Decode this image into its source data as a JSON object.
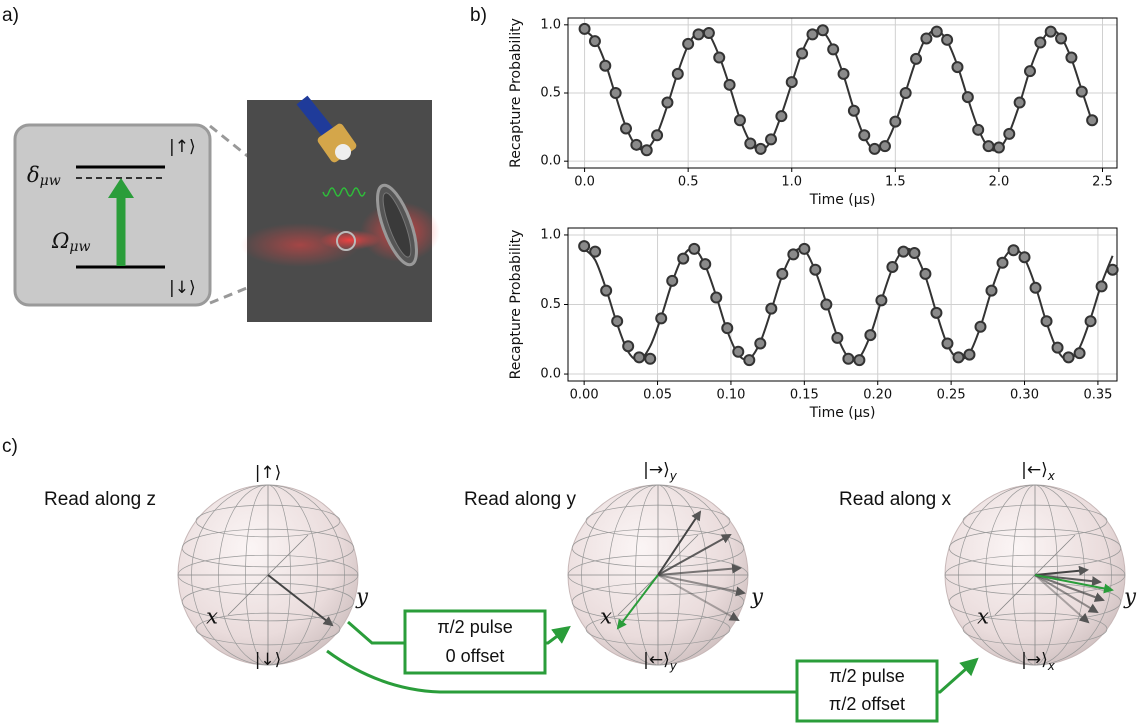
{
  "panel_labels": [
    "a)",
    "b)",
    "c)"
  ],
  "level_diagram": {
    "detuning": {
      "symbol": "δ",
      "subscript": "μw"
    },
    "rabi": {
      "symbol": "Ω",
      "subscript": "μw"
    },
    "upper": "|↑⟩",
    "lower": "|↓⟩"
  },
  "bloch": {
    "spheres": [
      {
        "title": "Read along z",
        "top": {
          "ket": "|↑⟩"
        },
        "bottom": {
          "ket": "|↓⟩"
        },
        "x": "x",
        "y": "y"
      },
      {
        "title": "Read along y",
        "top": {
          "ket": "|→⟩",
          "subscript": "y"
        },
        "bottom": {
          "ket": "|←⟩",
          "subscript": "y"
        },
        "x": "x",
        "y": "y"
      },
      {
        "title": "Read along x",
        "top": {
          "ket": "|←⟩",
          "subscript": "x"
        },
        "bottom": {
          "ket": "|→⟩",
          "subscript": "x"
        },
        "x": "x",
        "y": "y"
      }
    ],
    "pulses": [
      {
        "lines": [
          "π/2 pulse",
          "0 offset"
        ]
      },
      {
        "lines": [
          "π/2 pulse",
          "π/2 offset"
        ]
      }
    ]
  },
  "chart_data": [
    {
      "type": "scatter",
      "xlabel": "Time (μs)",
      "ylabel": "Recapture Probability",
      "grid": true,
      "xlim": [
        -0.08,
        2.57
      ],
      "ylim": [
        -0.05,
        1.05
      ],
      "xticks": [
        {
          "value": 0,
          "label": "0.0"
        },
        0.5,
        {
          "value": 1,
          "label": "1.0"
        },
        1.5,
        {
          "value": 2,
          "label": "2.0"
        },
        2.5
      ],
      "yticks": [
        {
          "value": 0,
          "label": "0.0"
        },
        0.5,
        {
          "value": 1,
          "label": "1.0"
        }
      ],
      "x": [
        0,
        0.05,
        0.1,
        0.15,
        0.2,
        0.25,
        0.3,
        0.35,
        0.4,
        0.45,
        0.5,
        0.55,
        0.6,
        0.65,
        0.7,
        0.75,
        0.8,
        0.85,
        0.9,
        0.95,
        1.0,
        1.05,
        1.1,
        1.15,
        1.2,
        1.25,
        1.3,
        1.35,
        1.4,
        1.45,
        1.5,
        1.55,
        1.6,
        1.65,
        1.7,
        1.75,
        1.8,
        1.85,
        1.9,
        1.95,
        2.0,
        2.05,
        2.1,
        2.15,
        2.2,
        2.25,
        2.3,
        2.35,
        2.4,
        2.45
      ],
      "series": [
        {
          "type": "line",
          "color": "#333333",
          "values": [
            0.96,
            0.89,
            0.72,
            0.48,
            0.25,
            0.11,
            0.09,
            0.2,
            0.41,
            0.65,
            0.85,
            0.95,
            0.93,
            0.77,
            0.55,
            0.31,
            0.14,
            0.08,
            0.15,
            0.34,
            0.57,
            0.8,
            0.94,
            0.95,
            0.83,
            0.63,
            0.38,
            0.18,
            0.08,
            0.12,
            0.28,
            0.51,
            0.74,
            0.91,
            0.96,
            0.88,
            0.7,
            0.46,
            0.24,
            0.1,
            0.09,
            0.21,
            0.42,
            0.67,
            0.86,
            0.96,
            0.91,
            0.75,
            0.52,
            0.29
          ]
        },
        {
          "type": "marker",
          "color": "#8a8a8a",
          "edgecolor": "#333333",
          "values": [
            0.97,
            0.88,
            0.7,
            0.5,
            0.24,
            0.12,
            0.08,
            0.19,
            0.43,
            0.64,
            0.86,
            0.93,
            0.94,
            0.76,
            0.56,
            0.3,
            0.13,
            0.09,
            0.16,
            0.33,
            0.58,
            0.79,
            0.93,
            0.96,
            0.82,
            0.64,
            0.37,
            0.19,
            0.09,
            0.11,
            0.29,
            0.5,
            0.75,
            0.9,
            0.95,
            0.89,
            0.69,
            0.47,
            0.23,
            0.11,
            0.1,
            0.2,
            0.43,
            0.66,
            0.87,
            0.95,
            0.9,
            0.76,
            0.51,
            0.3
          ]
        }
      ]
    },
    {
      "type": "scatter",
      "xlabel": "Time (μs)",
      "ylabel": "Recapture Probability",
      "grid": true,
      "xlim": [
        -0.011,
        0.363
      ],
      "ylim": [
        -0.05,
        1.05
      ],
      "xticks": [
        {
          "value": 0,
          "label": "0.00"
        },
        0.05,
        {
          "value": 0.1,
          "label": "0.10"
        },
        0.15,
        {
          "value": 0.2,
          "label": "0.20"
        },
        0.25,
        {
          "value": 0.3,
          "label": "0.30"
        },
        0.35
      ],
      "yticks": [
        {
          "value": 0,
          "label": "0.0"
        },
        0.5,
        {
          "value": 1,
          "label": "1.0"
        }
      ],
      "x": [
        0,
        0.0075,
        0.015,
        0.0225,
        0.03,
        0.0375,
        0.045,
        0.0525,
        0.06,
        0.0675,
        0.075,
        0.0825,
        0.09,
        0.0975,
        0.105,
        0.1125,
        0.12,
        0.1275,
        0.135,
        0.1425,
        0.15,
        0.1575,
        0.165,
        0.1725,
        0.18,
        0.1875,
        0.195,
        0.2025,
        0.21,
        0.2175,
        0.225,
        0.2325,
        0.24,
        0.2475,
        0.255,
        0.2625,
        0.27,
        0.2775,
        0.285,
        0.2925,
        0.3,
        0.3075,
        0.315,
        0.3225,
        0.33,
        0.3375,
        0.345,
        0.3525,
        0.36
      ],
      "series": [
        {
          "type": "line",
          "color": "#333333",
          "values": [
            0.9,
            0.82,
            0.61,
            0.36,
            0.16,
            0.1,
            0.2,
            0.41,
            0.66,
            0.85,
            0.9,
            0.78,
            0.56,
            0.31,
            0.14,
            0.11,
            0.23,
            0.46,
            0.71,
            0.87,
            0.89,
            0.74,
            0.51,
            0.27,
            0.12,
            0.12,
            0.28,
            0.53,
            0.76,
            0.89,
            0.87,
            0.7,
            0.44,
            0.21,
            0.11,
            0.15,
            0.34,
            0.6,
            0.81,
            0.9,
            0.83,
            0.63,
            0.37,
            0.17,
            0.1,
            0.19,
            0.4,
            0.65,
            0.85
          ]
        },
        {
          "type": "marker",
          "color": "#8a8a8a",
          "edgecolor": "#333333",
          "values": [
            0.92,
            0.88,
            0.6,
            0.38,
            0.2,
            0.12,
            0.11,
            0.4,
            0.67,
            0.83,
            0.9,
            0.79,
            0.55,
            0.33,
            0.16,
            0.1,
            0.22,
            0.47,
            0.72,
            0.86,
            0.9,
            0.75,
            0.5,
            0.26,
            0.11,
            0.1,
            0.28,
            0.53,
            0.77,
            0.88,
            0.87,
            0.72,
            0.44,
            0.22,
            0.12,
            0.14,
            0.34,
            0.6,
            0.8,
            0.89,
            0.84,
            0.62,
            0.38,
            0.19,
            0.12,
            0.15,
            0.38,
            0.63,
            0.75
          ]
        }
      ]
    }
  ]
}
